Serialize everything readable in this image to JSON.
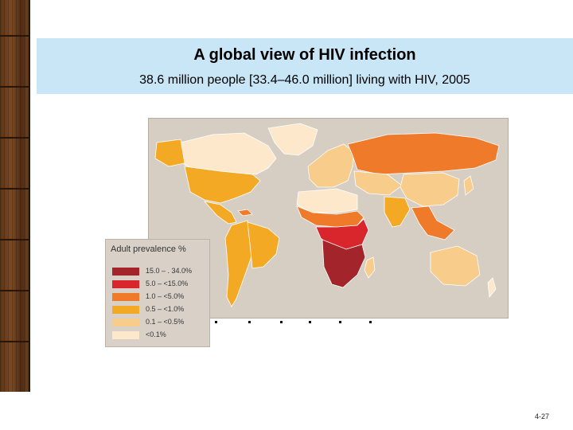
{
  "slide": {
    "title": "A global view of HIV infection",
    "subtitle": "38.6 million people [33.4–46.0 million] living with HIV, 2005",
    "page_number": "4-27"
  },
  "legend": {
    "title": "Adult prevalence %",
    "items": [
      {
        "label": "15.0 – . 34.0%",
        "color": "#a3242a"
      },
      {
        "label": "5.0 – <15.0%",
        "color": "#d8262c"
      },
      {
        "label": "1.0 – <5.0%",
        "color": "#ef7a2a"
      },
      {
        "label": "0.5 – <1.0%",
        "color": "#f4a925"
      },
      {
        "label": "0.1 – <0.5%",
        "color": "#f8cc8a"
      },
      {
        "label": "<0.1%",
        "color": "#fde8cc"
      }
    ]
  },
  "map": {
    "ocean_color": "#d6cdc3",
    "regions": [
      {
        "name": "Greenland",
        "color": "#fde8cc"
      },
      {
        "name": "Canada",
        "color": "#fde8cc"
      },
      {
        "name": "Alaska",
        "color": "#f4a925"
      },
      {
        "name": "United States",
        "color": "#f4a925"
      },
      {
        "name": "Central America",
        "color": "#f4a925"
      },
      {
        "name": "Caribbean",
        "color": "#ef7a2a"
      },
      {
        "name": "South America",
        "color": "#f4a925"
      },
      {
        "name": "Brazil",
        "color": "#f4a925"
      },
      {
        "name": "Europe",
        "color": "#f8cc8a"
      },
      {
        "name": "Russia",
        "color": "#ef7a2a"
      },
      {
        "name": "Central Asia",
        "color": "#f8cc8a"
      },
      {
        "name": "China",
        "color": "#f8cc8a"
      },
      {
        "name": "India",
        "color": "#f4a925"
      },
      {
        "name": "Southeast Asia",
        "color": "#ef7a2a"
      },
      {
        "name": "North Africa",
        "color": "#fde8cc"
      },
      {
        "name": "West Africa",
        "color": "#ef7a2a"
      },
      {
        "name": "Central Africa",
        "color": "#d8262c"
      },
      {
        "name": "Southern Africa",
        "color": "#a3242a"
      },
      {
        "name": "Madagascar",
        "color": "#f8cc8a"
      },
      {
        "name": "Australia",
        "color": "#f8cc8a"
      },
      {
        "name": "New Zealand",
        "color": "#fde8cc"
      },
      {
        "name": "Japan",
        "color": "#f8cc8a"
      }
    ]
  }
}
